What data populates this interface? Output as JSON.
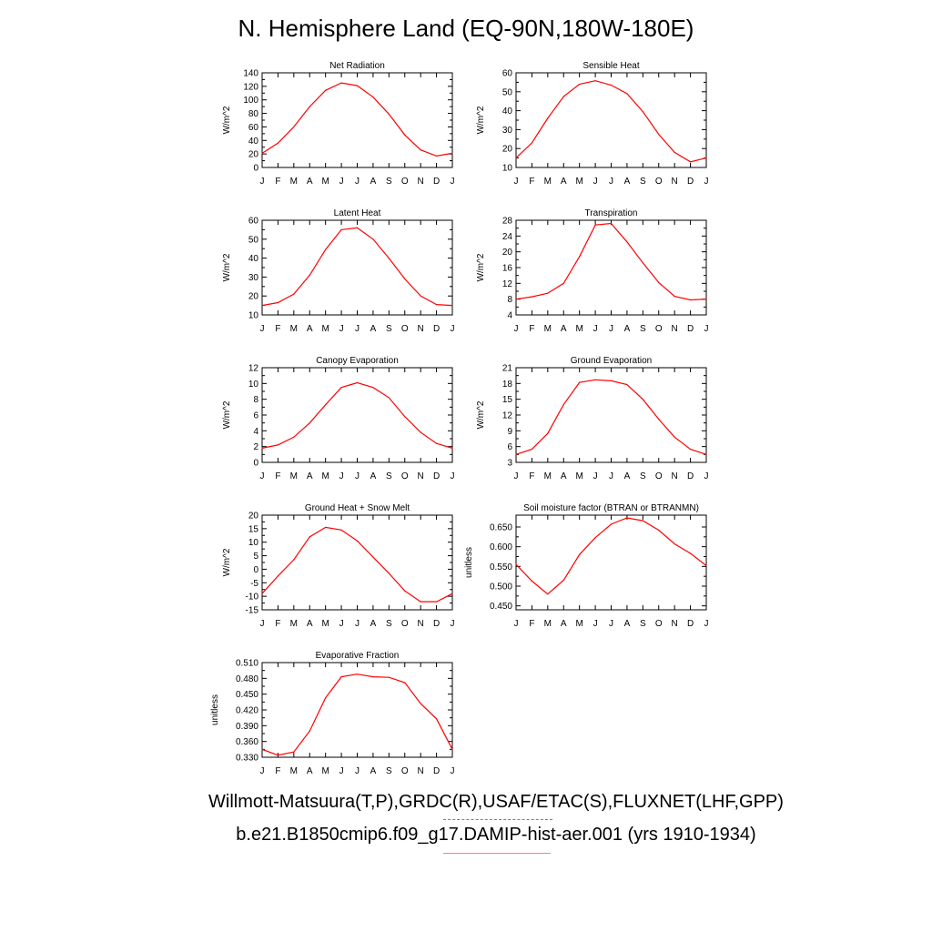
{
  "title": "N. Hemisphere Land (EQ-90N,180W-180E)",
  "footer": {
    "observations": "Willmott-Matsuura(T,P),GRDC(R),USAF/ETAC(S),FLUXNET(LHF,GPP)",
    "model": "b.e21.B1850cmip6.f09_g17.DAMIP-hist-aer.001 (yrs 1910-1934)"
  },
  "colors": {
    "model_line": "#ff0000",
    "obs_line": "#7070e0",
    "axis": "#000000"
  },
  "chart_data": [
    {
      "type": "line",
      "title": "Net Radiation",
      "ylabel": "W/m^2",
      "categories": [
        "J",
        "F",
        "M",
        "A",
        "M",
        "J",
        "J",
        "A",
        "S",
        "O",
        "N",
        "D",
        "J"
      ],
      "ylim": [
        0,
        140
      ],
      "yticks": [
        0,
        20,
        40,
        60,
        80,
        100,
        120,
        140
      ],
      "tick_decimals": 0,
      "series": [
        {
          "values": [
            21,
            36,
            60,
            90,
            114,
            125,
            121,
            104,
            79,
            48,
            26,
            17,
            21
          ]
        }
      ]
    },
    {
      "type": "line",
      "title": "Sensible Heat",
      "ylabel": "W/m^2",
      "categories": [
        "J",
        "F",
        "M",
        "A",
        "M",
        "J",
        "J",
        "A",
        "S",
        "O",
        "N",
        "D",
        "J"
      ],
      "ylim": [
        10,
        60
      ],
      "yticks": [
        10,
        20,
        30,
        40,
        50,
        60
      ],
      "tick_decimals": 0,
      "series": [
        {
          "values": [
            15,
            23,
            36,
            47.5,
            54,
            55.8,
            53.5,
            49,
            39.5,
            27.5,
            18,
            13,
            15
          ]
        }
      ]
    },
    {
      "type": "line",
      "title": "Latent Heat",
      "ylabel": "W/m^2",
      "categories": [
        "J",
        "F",
        "M",
        "A",
        "M",
        "J",
        "J",
        "A",
        "S",
        "O",
        "N",
        "D",
        "J"
      ],
      "ylim": [
        10,
        60
      ],
      "yticks": [
        10,
        20,
        30,
        40,
        50,
        60
      ],
      "tick_decimals": 0,
      "series": [
        {
          "values": [
            15,
            16.5,
            21,
            31,
            44.5,
            55,
            56,
            50,
            40,
            29,
            20,
            15.5,
            15
          ]
        }
      ]
    },
    {
      "type": "line",
      "title": "Transpiration",
      "ylabel": "W/m^2",
      "categories": [
        "J",
        "F",
        "M",
        "A",
        "M",
        "J",
        "J",
        "A",
        "S",
        "O",
        "N",
        "D",
        "J"
      ],
      "ylim": [
        4,
        28
      ],
      "yticks": [
        4,
        8,
        12,
        16,
        20,
        24,
        28
      ],
      "tick_decimals": 0,
      "series": [
        {
          "values": [
            8,
            8.6,
            9.5,
            12,
            18.8,
            26.8,
            27.2,
            22.5,
            17.2,
            12.2,
            8.7,
            7.8,
            8
          ]
        }
      ]
    },
    {
      "type": "line",
      "title": "Canopy Evaporation",
      "ylabel": "W/m^2",
      "categories": [
        "J",
        "F",
        "M",
        "A",
        "M",
        "J",
        "J",
        "A",
        "S",
        "O",
        "N",
        "D",
        "J"
      ],
      "ylim": [
        0,
        12
      ],
      "yticks": [
        0,
        2,
        4,
        6,
        8,
        10,
        12
      ],
      "tick_decimals": 0,
      "series": [
        {
          "values": [
            1.8,
            2.2,
            3.2,
            5,
            7.3,
            9.5,
            10.1,
            9.5,
            8.2,
            5.8,
            3.8,
            2.4,
            1.8
          ]
        }
      ]
    },
    {
      "type": "line",
      "title": "Ground Evaporation",
      "ylabel": "W/m^2",
      "categories": [
        "J",
        "F",
        "M",
        "A",
        "M",
        "J",
        "J",
        "A",
        "S",
        "O",
        "N",
        "D",
        "J"
      ],
      "ylim": [
        3,
        21
      ],
      "yticks": [
        3,
        6,
        9,
        12,
        15,
        18,
        21
      ],
      "tick_decimals": 0,
      "series": [
        {
          "values": [
            4.5,
            5.5,
            8.5,
            14,
            18.2,
            18.7,
            18.5,
            17.8,
            15,
            11.2,
            7.8,
            5.5,
            4.5
          ]
        }
      ]
    },
    {
      "type": "line",
      "title": "Ground Heat + Snow Melt",
      "ylabel": "W/m^2",
      "categories": [
        "J",
        "F",
        "M",
        "A",
        "M",
        "J",
        "J",
        "A",
        "S",
        "O",
        "N",
        "D",
        "J"
      ],
      "ylim": [
        -15,
        20
      ],
      "yticks": [
        -15,
        -10,
        -5,
        0,
        5,
        10,
        15,
        20
      ],
      "tick_decimals": 0,
      "series": [
        {
          "values": [
            -9,
            -2.5,
            3.5,
            12,
            15.5,
            14.5,
            10.5,
            4.5,
            -1.5,
            -8,
            -12,
            -12,
            -9
          ]
        }
      ]
    },
    {
      "type": "line",
      "title": "Soil moisture factor (BTRAN or BTRANMN)",
      "ylabel": "unitless",
      "categories": [
        "J",
        "F",
        "M",
        "A",
        "M",
        "J",
        "J",
        "A",
        "S",
        "O",
        "N",
        "D",
        "J"
      ],
      "ylim": [
        0.44,
        0.68
      ],
      "yticks": [
        0.45,
        0.5,
        0.55,
        0.6,
        0.65
      ],
      "tick_decimals": 3,
      "series": [
        {
          "values": [
            0.555,
            0.513,
            0.48,
            0.515,
            0.58,
            0.623,
            0.657,
            0.673,
            0.666,
            0.642,
            0.607,
            0.583,
            0.552
          ]
        }
      ]
    },
    {
      "type": "line",
      "title": "Evaporative Fraction",
      "ylabel": "unitless",
      "categories": [
        "J",
        "F",
        "M",
        "A",
        "M",
        "J",
        "J",
        "A",
        "S",
        "O",
        "N",
        "D",
        "J"
      ],
      "ylim": [
        0.33,
        0.51
      ],
      "yticks": [
        0.33,
        0.36,
        0.39,
        0.42,
        0.45,
        0.48,
        0.51
      ],
      "tick_decimals": 3,
      "series": [
        {
          "values": [
            0.345,
            0.334,
            0.34,
            0.38,
            0.443,
            0.483,
            0.488,
            0.483,
            0.482,
            0.472,
            0.432,
            0.403,
            0.345
          ]
        }
      ]
    }
  ]
}
